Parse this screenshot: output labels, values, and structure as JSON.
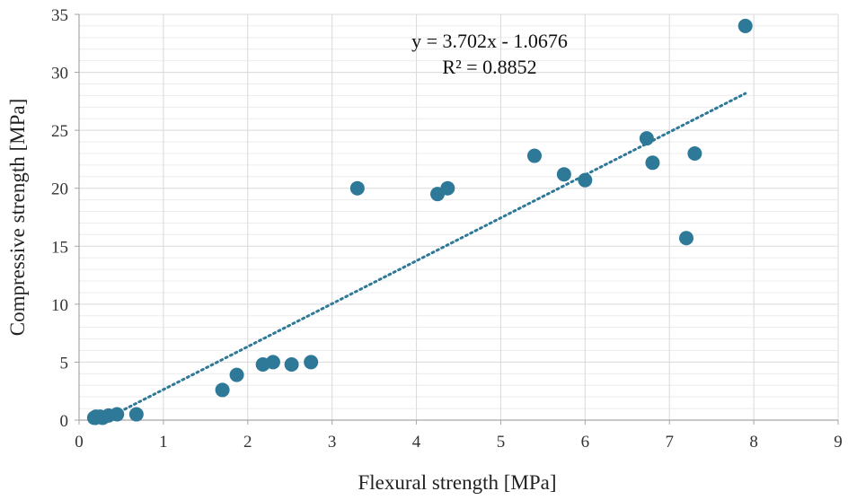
{
  "chart_data": {
    "type": "scatter",
    "title": "",
    "xlabel": "Flexural strength [MPa]",
    "ylabel": "Compressive strength [MPa]",
    "xlim": [
      0,
      9
    ],
    "ylim": [
      0,
      35
    ],
    "x_ticks": [
      "0",
      "1",
      "2",
      "3",
      "4",
      "5",
      "6",
      "7",
      "8",
      "9"
    ],
    "y_ticks": [
      "0",
      "5",
      "10",
      "15",
      "20",
      "25",
      "30",
      "35"
    ],
    "grid": true,
    "legend": "none",
    "trendline": {
      "type": "linear",
      "slope": 3.702,
      "intercept": -1.0676,
      "x_range": [
        0.2,
        7.9
      ],
      "equation": "y = 3.702x - 1.0676",
      "r_squared": "R² = 0.8852"
    },
    "colors": {
      "points": "#2e7898",
      "trendline": "#2e7898",
      "grid": "#d9d9d9"
    },
    "points": [
      {
        "x": 0.18,
        "y": 0.2
      },
      {
        "x": 0.2,
        "y": 0.3
      },
      {
        "x": 0.22,
        "y": 0.25
      },
      {
        "x": 0.25,
        "y": 0.3
      },
      {
        "x": 0.28,
        "y": 0.2
      },
      {
        "x": 0.35,
        "y": 0.4
      },
      {
        "x": 0.45,
        "y": 0.5
      },
      {
        "x": 0.68,
        "y": 0.5
      },
      {
        "x": 1.7,
        "y": 2.6
      },
      {
        "x": 1.87,
        "y": 3.9
      },
      {
        "x": 2.18,
        "y": 4.8
      },
      {
        "x": 2.3,
        "y": 5.0
      },
      {
        "x": 2.52,
        "y": 4.8
      },
      {
        "x": 2.75,
        "y": 5.0
      },
      {
        "x": 3.3,
        "y": 20.0
      },
      {
        "x": 4.25,
        "y": 19.5
      },
      {
        "x": 4.37,
        "y": 20.0
      },
      {
        "x": 5.4,
        "y": 22.8
      },
      {
        "x": 5.75,
        "y": 21.2
      },
      {
        "x": 6.0,
        "y": 20.7
      },
      {
        "x": 6.73,
        "y": 24.3
      },
      {
        "x": 6.8,
        "y": 22.2
      },
      {
        "x": 7.2,
        "y": 15.7
      },
      {
        "x": 7.3,
        "y": 23.0
      },
      {
        "x": 7.9,
        "y": 34.0
      }
    ]
  }
}
